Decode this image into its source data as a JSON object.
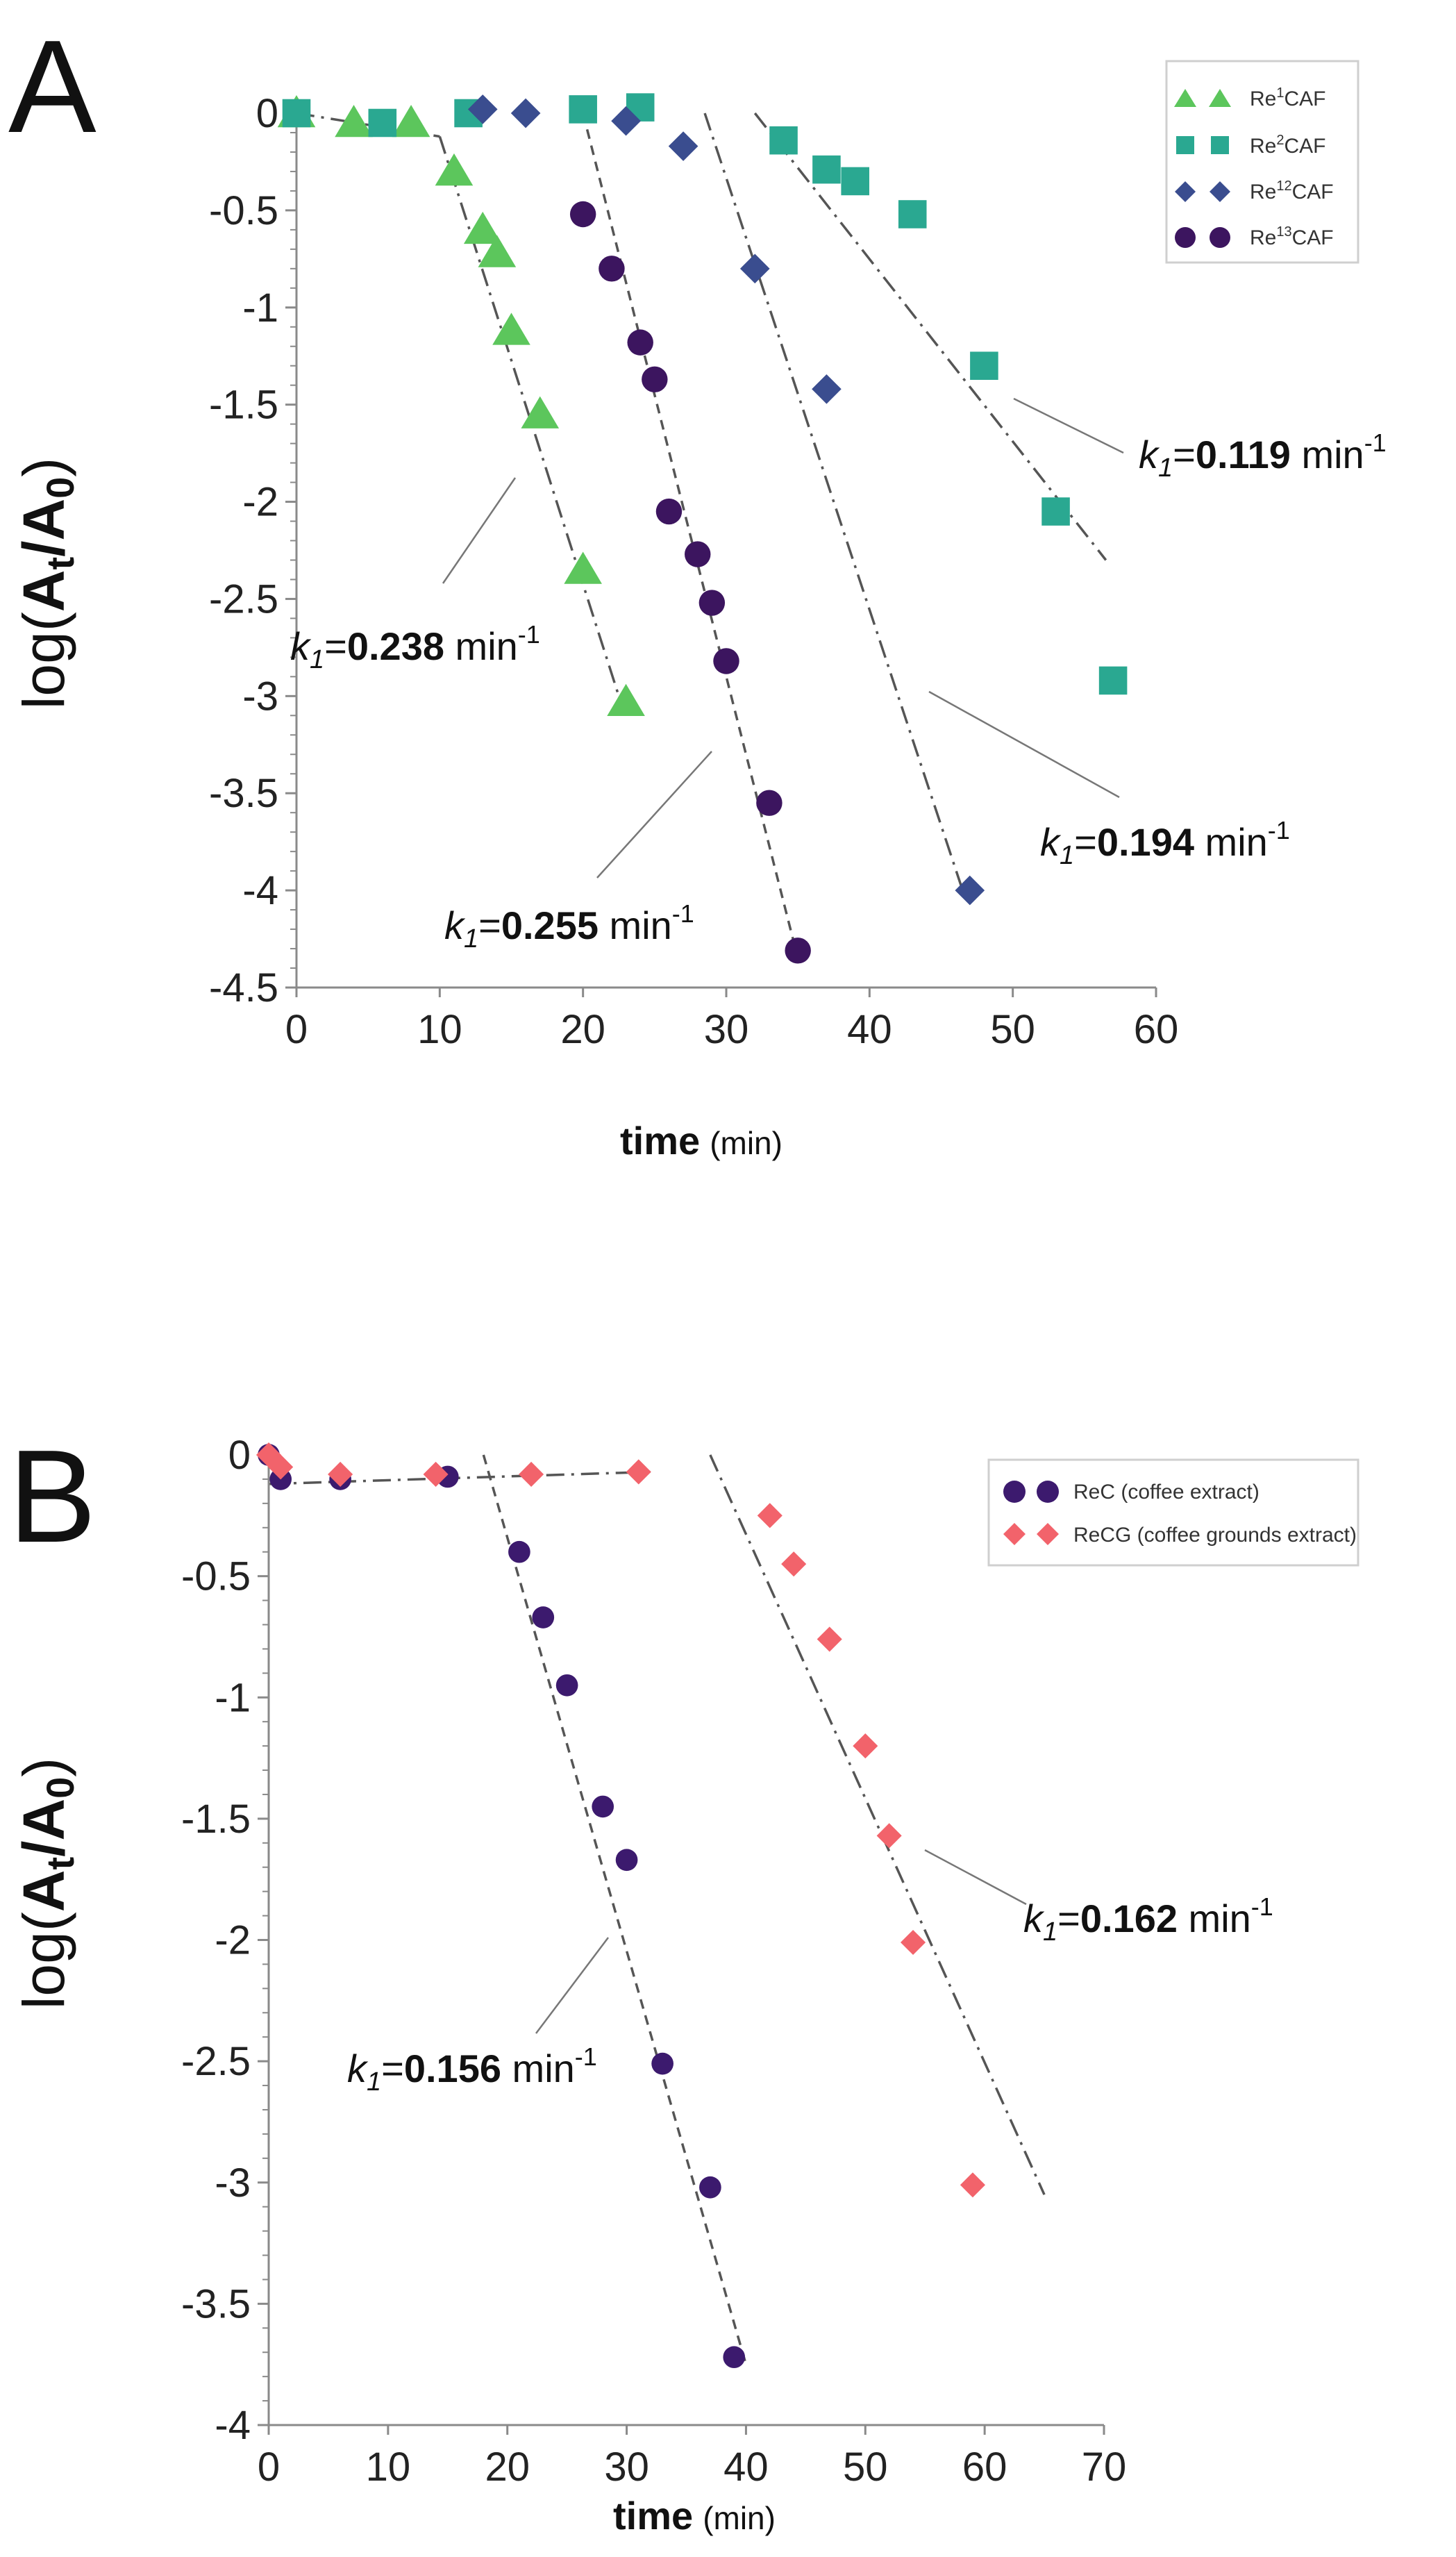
{
  "chart_data": [
    {
      "type": "scatter",
      "panel_label": "A",
      "xlabel_bold": "time",
      "xlabel_unit": "(min)",
      "ylabel_prefix": "log(",
      "ylabel_A": "A",
      "ylabel_t": "t",
      "ylabel_slash": "/A",
      "ylabel_0": "0",
      "ylabel_suffix": ")",
      "xlim": [
        0,
        60
      ],
      "ylim": [
        -4.5,
        0
      ],
      "xticks": [
        "0",
        "10",
        "20",
        "30",
        "40",
        "50",
        "60"
      ],
      "yticks": [
        "0",
        "-0.5",
        "-1",
        "-1.5",
        "-2",
        "-2.5",
        "-3",
        "-3.5",
        "-4",
        "-4.5"
      ],
      "legend_position": "top-right",
      "series": [
        {
          "name_prefix": "Re",
          "name_sup": "1",
          "name_suffix": "CAF",
          "marker": "triangle",
          "color": "#5cc65c",
          "points": [
            [
              0,
              0
            ],
            [
              4,
              -0.05
            ],
            [
              8,
              -0.05
            ],
            [
              11,
              -0.3
            ],
            [
              13,
              -0.6
            ],
            [
              14,
              -0.72
            ],
            [
              15,
              -1.12
            ],
            [
              17,
              -1.55
            ],
            [
              20,
              -2.35
            ],
            [
              23,
              -3.03
            ]
          ]
        },
        {
          "name_prefix": "Re",
          "name_sup": "2",
          "name_suffix": "CAF",
          "marker": "square",
          "color": "#2aa891",
          "points": [
            [
              0,
              0
            ],
            [
              6,
              -0.05
            ],
            [
              12,
              0
            ],
            [
              20,
              0.02
            ],
            [
              24,
              0.03
            ],
            [
              34,
              -0.14
            ],
            [
              37,
              -0.29
            ],
            [
              39,
              -0.35
            ],
            [
              43,
              -0.52
            ],
            [
              48,
              -1.3
            ],
            [
              53,
              -2.05
            ],
            [
              57,
              -2.92
            ]
          ]
        },
        {
          "name_prefix": "Re",
          "name_sup": "12",
          "name_suffix": "CAF",
          "marker": "diamond",
          "color": "#3a4d8f",
          "points": [
            [
              13,
              0.02
            ],
            [
              16,
              0
            ],
            [
              23,
              -0.04
            ],
            [
              27,
              -0.17
            ],
            [
              32,
              -0.8
            ],
            [
              37,
              -1.42
            ],
            [
              47,
              -4.0
            ]
          ]
        },
        {
          "name_prefix": "Re",
          "name_sup": "13",
          "name_suffix": "CAF",
          "marker": "circle",
          "color": "#3c155f",
          "points": [
            [
              20,
              -0.52
            ],
            [
              22,
              -0.8
            ],
            [
              24,
              -1.18
            ],
            [
              25,
              -1.37
            ],
            [
              26,
              -2.05
            ],
            [
              28,
              -2.27
            ],
            [
              29,
              -2.52
            ],
            [
              30,
              -2.82
            ],
            [
              33,
              -3.55
            ],
            [
              35,
              -4.31
            ]
          ]
        }
      ],
      "fit_lines": [
        {
          "style": "dash-dot",
          "from": [
            0,
            0
          ],
          "to": [
            10,
            -0.12
          ]
        },
        {
          "style": "dash-dot",
          "from": [
            10,
            -0.12
          ],
          "to": [
            22.5,
            -3.0
          ]
        },
        {
          "style": "dash",
          "from": [
            20,
            0
          ],
          "to": [
            35,
            -4.35
          ]
        },
        {
          "style": "dash-dot",
          "from": [
            28.5,
            0
          ],
          "to": [
            46.5,
            -4.0
          ]
        },
        {
          "style": "dash-dot",
          "from": [
            32,
            0
          ],
          "to": [
            56.5,
            -2.3
          ]
        }
      ],
      "annotations": [
        {
          "italic": "k",
          "sub": "1",
          "eq": "=",
          "bold": "0.119",
          "unit": " min",
          "sup": "-1"
        },
        {
          "italic": "k",
          "sub": "1",
          "eq": "=",
          "bold": "0.238",
          "unit": " min",
          "sup": "-1"
        },
        {
          "italic": "k",
          "sub": "1",
          "eq": "=",
          "bold": "0.194",
          "unit": " min",
          "sup": "-1"
        },
        {
          "italic": "k",
          "sub": "1",
          "eq": "=",
          "bold": "0.255",
          "unit": " min",
          "sup": "-1"
        }
      ]
    },
    {
      "type": "scatter",
      "panel_label": "B",
      "xlabel_bold": "time",
      "xlabel_unit": "(min)",
      "ylabel_prefix": "log(",
      "ylabel_A": "A",
      "ylabel_t": "t",
      "ylabel_slash": "/A",
      "ylabel_0": "0",
      "ylabel_suffix": ")",
      "xlim": [
        0,
        70
      ],
      "ylim": [
        -4,
        0
      ],
      "xticks": [
        "0",
        "10",
        "20",
        "30",
        "40",
        "50",
        "60",
        "70"
      ],
      "yticks": [
        "0",
        "-0.5",
        "-1",
        "-1.5",
        "-2",
        "-2.5",
        "-3",
        "-3.5",
        "-4"
      ],
      "legend_position": "top-right",
      "series": [
        {
          "name": "ReC (coffee extract)",
          "marker": "circle",
          "color": "#3c1a6e",
          "points": [
            [
              0,
              0
            ],
            [
              1,
              -0.1
            ],
            [
              6,
              -0.1
            ],
            [
              15,
              -0.09
            ],
            [
              21,
              -0.4
            ],
            [
              23,
              -0.67
            ],
            [
              25,
              -0.95
            ],
            [
              28,
              -1.45
            ],
            [
              30,
              -1.67
            ],
            [
              33,
              -2.51
            ],
            [
              37,
              -3.02
            ],
            [
              39,
              -3.72
            ]
          ]
        },
        {
          "name": "ReCG (coffee grounds extract)",
          "marker": "diamond",
          "color": "#f2636b",
          "points": [
            [
              0,
              0
            ],
            [
              1,
              -0.05
            ],
            [
              6,
              -0.08
            ],
            [
              14,
              -0.08
            ],
            [
              22,
              -0.08
            ],
            [
              31,
              -0.07
            ],
            [
              42,
              -0.25
            ],
            [
              44,
              -0.45
            ],
            [
              47,
              -0.76
            ],
            [
              50,
              -1.2
            ],
            [
              52,
              -1.57
            ],
            [
              54,
              -2.01
            ],
            [
              59,
              -3.01
            ]
          ]
        }
      ],
      "fit_lines": [
        {
          "style": "dash-dot",
          "from": [
            0,
            -0.12
          ],
          "to": [
            32,
            -0.07
          ]
        },
        {
          "style": "dash",
          "from": [
            18,
            0
          ],
          "to": [
            40,
            -3.75
          ]
        },
        {
          "style": "dash-dot",
          "from": [
            37,
            0
          ],
          "to": [
            65,
            -3.05
          ]
        }
      ],
      "annotations": [
        {
          "italic": "k",
          "sub": "1",
          "eq": "=",
          "bold": "0.162",
          "unit": " min",
          "sup": "-1"
        },
        {
          "italic": "k",
          "sub": "1",
          "eq": "=",
          "bold": "0.156",
          "unit": " min",
          "sup": "-1"
        }
      ]
    }
  ]
}
